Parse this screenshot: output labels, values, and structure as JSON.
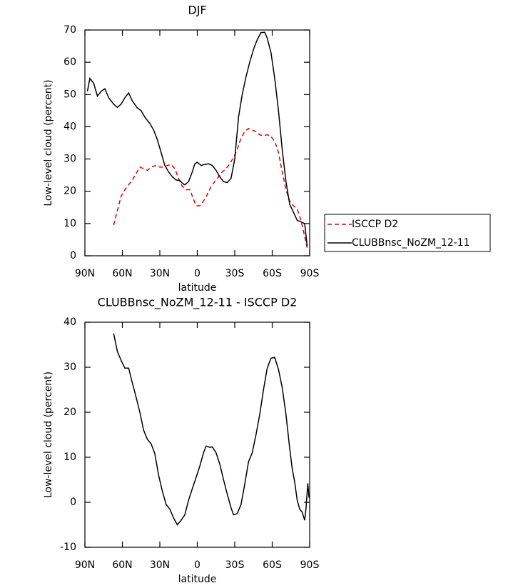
{
  "chart_data": [
    {
      "type": "line",
      "title": "DJF",
      "xlabel": "latitude",
      "ylabel": "Low-level cloud (percent)",
      "xlim": [
        90,
        -90
      ],
      "xticks": [
        {
          "value": 90,
          "label": "90N"
        },
        {
          "value": 60,
          "label": "60N"
        },
        {
          "value": 30,
          "label": "30N"
        },
        0,
        {
          "value": -30,
          "label": "30S"
        },
        {
          "value": -60,
          "label": "60S"
        },
        {
          "value": -90,
          "label": "90S"
        }
      ],
      "ylim": [
        0,
        70
      ],
      "yticks": [
        0,
        10,
        20,
        30,
        40,
        50,
        60,
        70
      ],
      "legend": "right",
      "series": [
        {
          "name": "ISCCP D2",
          "color": "#e00000",
          "dash": true,
          "x": [
            67,
            64,
            61,
            58,
            55,
            52,
            49,
            46,
            43,
            40,
            37,
            33,
            30,
            27,
            24,
            21,
            18,
            15,
            12,
            9,
            6,
            3,
            1,
            -2,
            -5,
            -8,
            -11,
            -14,
            -17,
            -20,
            -23,
            -26,
            -29,
            -32,
            -35,
            -38,
            -41,
            -44,
            -47,
            -50,
            -53,
            -56,
            -59,
            -62,
            -65,
            -68,
            -71,
            -74,
            -77,
            -80,
            -83,
            -86,
            -88
          ],
          "values": [
            9.5,
            14,
            18.5,
            20.5,
            22,
            23.5,
            25.5,
            27.5,
            27,
            26.5,
            27.5,
            28,
            27.5,
            27.5,
            28,
            28.3,
            27,
            24,
            21.5,
            20.5,
            20.5,
            17.5,
            15.5,
            15.5,
            17,
            19,
            21.5,
            23,
            24.5,
            26,
            27,
            28.5,
            30.5,
            33,
            36.5,
            38.5,
            39.5,
            39,
            38.5,
            37.5,
            37.2,
            37.5,
            37,
            35.5,
            32,
            26,
            20.5,
            17,
            15.5,
            14.5,
            11,
            6,
            2.5
          ]
        },
        {
          "name": "CLUBBnsc_NoZM_12-11",
          "color": "#000000",
          "dash": false,
          "x": [
            88,
            86,
            83,
            80,
            77,
            74,
            71,
            67,
            64,
            61,
            58,
            55,
            52,
            48,
            45,
            42,
            38,
            35,
            32,
            29,
            26,
            23,
            20,
            17,
            14,
            12,
            10,
            7,
            4,
            2,
            0,
            -3,
            -6,
            -9,
            -12,
            -15,
            -18,
            -21,
            -24,
            -27,
            -30,
            -33,
            -36,
            -39,
            -42,
            -45,
            -48,
            -51,
            -54,
            -56,
            -59,
            -62,
            -65,
            -68,
            -71,
            -74,
            -77,
            -80,
            -83,
            -86,
            -88
          ],
          "values": [
            51,
            55,
            53.5,
            49.5,
            51,
            51.8,
            49,
            47,
            46,
            47,
            49,
            50.5,
            48,
            45.8,
            45,
            43,
            41,
            39,
            36,
            32,
            28,
            26,
            24.5,
            23.5,
            23.3,
            22.5,
            22,
            23,
            26,
            28.5,
            29,
            28,
            28.3,
            28.5,
            28,
            26.5,
            24.5,
            23,
            22.7,
            24,
            30,
            43,
            50,
            55.5,
            60,
            64,
            67,
            69.2,
            69.3,
            67.5,
            63,
            55,
            45,
            33,
            23,
            16,
            13.5,
            11,
            10.5,
            10,
            3
          ]
        }
      ]
    },
    {
      "type": "line",
      "title": "CLUBBnsc_NoZM_12-11 - ISCCP D2",
      "xlabel": "latitude",
      "ylabel": "Low-level cloud (percent)",
      "xlim": [
        90,
        -90
      ],
      "xticks": [
        {
          "value": 90,
          "label": "90N"
        },
        {
          "value": 60,
          "label": "60N"
        },
        {
          "value": 30,
          "label": "30N"
        },
        0,
        {
          "value": -30,
          "label": "30S"
        },
        {
          "value": -60,
          "label": "60S"
        },
        {
          "value": -90,
          "label": "90S"
        }
      ],
      "ylim": [
        -10,
        40
      ],
      "yticks": [
        -10,
        0,
        10,
        20,
        30,
        40
      ],
      "series": [
        {
          "color": "#000000",
          "dash": false,
          "x": [
            67,
            64,
            61,
            58,
            55,
            52,
            49,
            46,
            43,
            40,
            37,
            34,
            31,
            28,
            25,
            22,
            19,
            16,
            13,
            10,
            7,
            4,
            1,
            -2,
            -5,
            -7,
            -10,
            -12,
            -15,
            -18,
            -21,
            -24,
            -27,
            -29,
            -32,
            -35,
            -38,
            -41,
            -44,
            -47,
            -50,
            -53,
            -56,
            -59,
            -62,
            -65,
            -68,
            -71,
            -74,
            -76,
            -78,
            -80,
            -82,
            -84,
            -86,
            -87,
            -88.5,
            -89.5
          ],
          "values": [
            37.5,
            33.5,
            31.5,
            29.8,
            29.8,
            26.5,
            23.3,
            20,
            16,
            14,
            13,
            10.8,
            6,
            2.5,
            -0.5,
            -1.5,
            -3.5,
            -5,
            -4,
            -2.8,
            0.5,
            3,
            5.5,
            8,
            11,
            12.5,
            12.2,
            12.3,
            11,
            8.5,
            5,
            1.8,
            -1.2,
            -2.8,
            -2.5,
            -0.5,
            4,
            9,
            11,
            15,
            19.5,
            25,
            29.8,
            32,
            32.2,
            29.5,
            25.5,
            19.5,
            12,
            7.5,
            4.5,
            0.5,
            -1.5,
            -2.2,
            -4,
            -1.5,
            4.2,
            1
          ]
        }
      ]
    }
  ]
}
